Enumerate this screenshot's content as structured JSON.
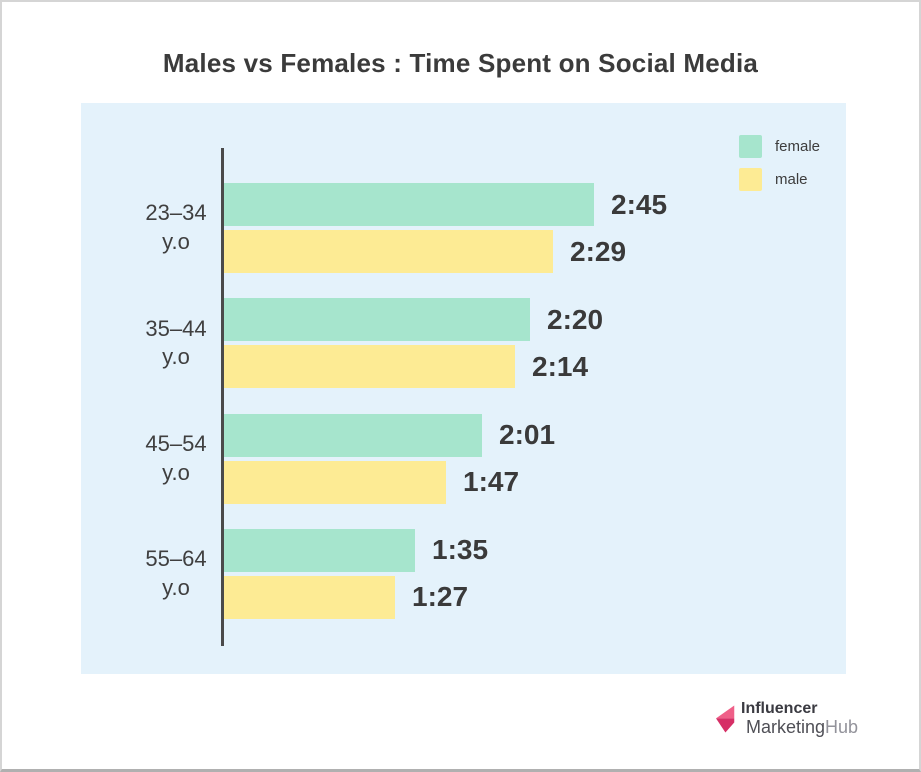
{
  "title": "Males vs Females : Time Spent on Social Media",
  "legend": {
    "items": [
      {
        "label": "female",
        "color": "#a6e5cd"
      },
      {
        "label": "male",
        "color": "#fdeb94"
      }
    ]
  },
  "chart_data": {
    "type": "bar",
    "orientation": "horizontal",
    "title": "Males vs Females : Time Spent on Social Media",
    "categories": [
      "23–34 y.o",
      "35–44 y.o",
      "45–54 y.o",
      "55–64 y.o"
    ],
    "series": [
      {
        "name": "female",
        "color": "#a6e5cd",
        "labels": [
          "2:45",
          "2:20",
          "2:01",
          "1:35"
        ],
        "minutes": [
          165,
          140,
          121,
          95
        ]
      },
      {
        "name": "male",
        "color": "#fdeb94",
        "labels": [
          "2:29",
          "2:14",
          "1:47",
          "1:27"
        ],
        "minutes": [
          149,
          134,
          107,
          87
        ]
      }
    ],
    "value_unit": "hours:minutes per day",
    "legend_position": "top-right",
    "grid": false,
    "axis_baseline": "left"
  },
  "colors": {
    "panel_bg": "#e4f2fb",
    "card_bg": "#ffffff",
    "axis": "#4a4a4a",
    "text": "#3b3b3b"
  },
  "logo": {
    "line1": "Influencer",
    "line2_part1": "Marketing",
    "line2_part2": "Hub",
    "arrow_colors": [
      "#ef5f88",
      "#d62f66"
    ]
  }
}
